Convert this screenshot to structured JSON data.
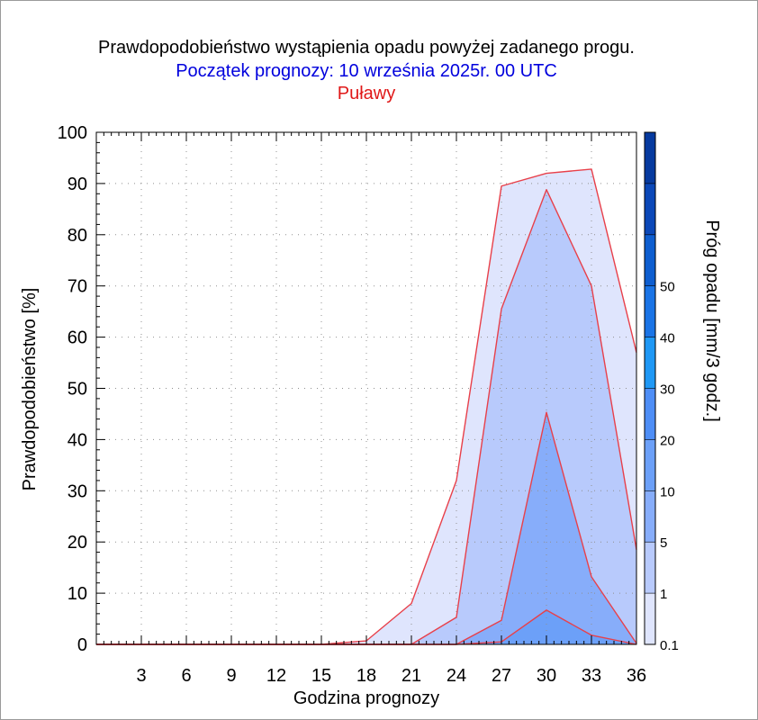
{
  "title": "Prawdopodobieństwo wystąpienia opadu powyżej zadanego progu.",
  "subtitle": "Początek prognozy: 10 września 2025r. 00 UTC",
  "station": "Puławy",
  "colors": {
    "title": "#000000",
    "subtitle": "#0000dd",
    "station": "#e01818",
    "outline": "#e8404a"
  },
  "chart_data": {
    "type": "area",
    "xlabel": "Godzina prognozy",
    "ylabel": "Prawdopodobieństwo [%]",
    "xlim": [
      0,
      36
    ],
    "ylim": [
      0,
      100
    ],
    "xticks": [
      3,
      6,
      9,
      12,
      15,
      18,
      21,
      24,
      27,
      30,
      33,
      36
    ],
    "yticks": [
      0,
      10,
      20,
      30,
      40,
      50,
      60,
      70,
      80,
      90,
      100
    ],
    "grid": true,
    "x": [
      0,
      3,
      6,
      9,
      12,
      15,
      18,
      21,
      24,
      27,
      30,
      33,
      36
    ],
    "series": [
      {
        "threshold": "0.1",
        "color": "#dfe5fd",
        "values": [
          0,
          0,
          0,
          0,
          0,
          0,
          0.7,
          8,
          32,
          89.5,
          92,
          92.8,
          57
        ]
      },
      {
        "threshold": "1",
        "color": "#b8cafc",
        "values": [
          0,
          0,
          0,
          0,
          0,
          0,
          0,
          0,
          5.3,
          65.5,
          88.8,
          70,
          18.5
        ]
      },
      {
        "threshold": "5",
        "color": "#87adfa",
        "values": [
          0,
          0,
          0,
          0,
          0,
          0,
          0,
          0,
          0,
          4.7,
          45.3,
          13.2,
          0.2
        ]
      },
      {
        "threshold": "10",
        "color": "#6ca0f8",
        "values": [
          0,
          0,
          0,
          0,
          0,
          0,
          0,
          0,
          0,
          0.5,
          6.7,
          1.8,
          0
        ]
      }
    ],
    "colorbar": {
      "label": "Próg opadu [mm/3 godz.]",
      "labels": [
        "0.1",
        "1",
        "5",
        "10",
        "20",
        "30",
        "40",
        "50"
      ],
      "colors": [
        "#dfe5fd",
        "#b8cafc",
        "#87adfa",
        "#6ca0f8",
        "#4e8ef6",
        "#1f98f5",
        "#1a74e6",
        "#0e5ed0",
        "#0b48b8",
        "#063a9f"
      ]
    }
  }
}
